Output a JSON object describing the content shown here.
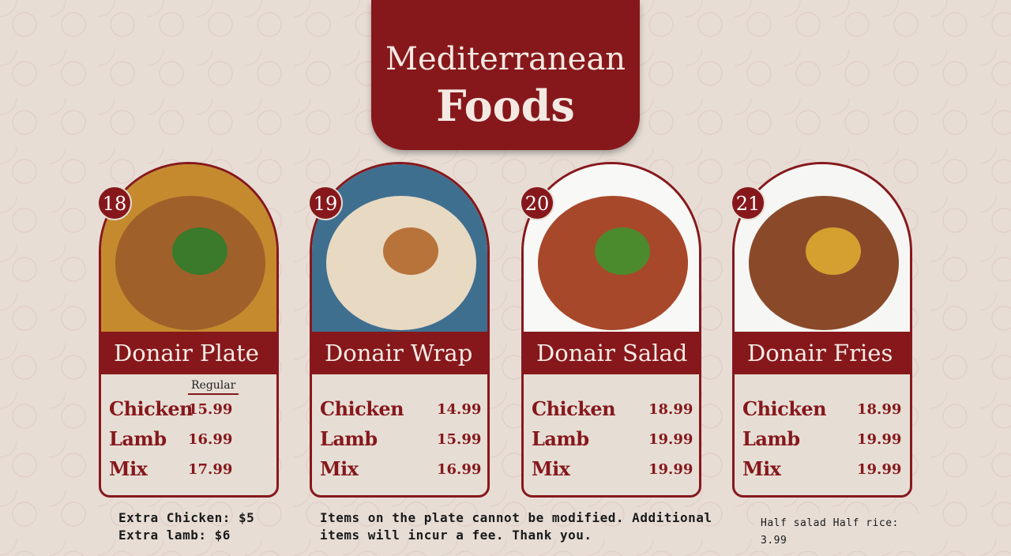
{
  "header": {
    "line1": "Mediterranean",
    "line2": "Foods"
  },
  "colors": {
    "accent": "#86181c",
    "background": "#e7ddd5"
  },
  "items": [
    {
      "number": "18",
      "name": "Donair Plate",
      "size_label": "Regular",
      "rows": [
        {
          "label": "Chicken",
          "price": "15.99"
        },
        {
          "label": "Lamb",
          "price": "16.99"
        },
        {
          "label": "Mix",
          "price": "17.99"
        }
      ]
    },
    {
      "number": "19",
      "name": "Donair Wrap",
      "rows": [
        {
          "label": "Chicken",
          "price": "14.99"
        },
        {
          "label": "Lamb",
          "price": "15.99"
        },
        {
          "label": "Mix",
          "price": "16.99"
        }
      ]
    },
    {
      "number": "20",
      "name": "Donair Salad",
      "rows": [
        {
          "label": "Chicken",
          "price": "18.99"
        },
        {
          "label": "Lamb",
          "price": "19.99"
        },
        {
          "label": "Mix",
          "price": "19.99"
        }
      ]
    },
    {
      "number": "21",
      "name": "Donair Fries",
      "rows": [
        {
          "label": "Chicken",
          "price": "18.99"
        },
        {
          "label": "Lamb",
          "price": "19.99"
        },
        {
          "label": "Mix",
          "price": "19.99"
        }
      ]
    }
  ],
  "footer": {
    "extra_chicken": "Extra Chicken: $5",
    "extra_lamb": "Extra lamb: $6",
    "policy_line1": "Items on the plate cannot be modified. Additional",
    "policy_line2": "items will incur a fee. Thank you.",
    "half": "Half salad Half rice: 3.99"
  }
}
